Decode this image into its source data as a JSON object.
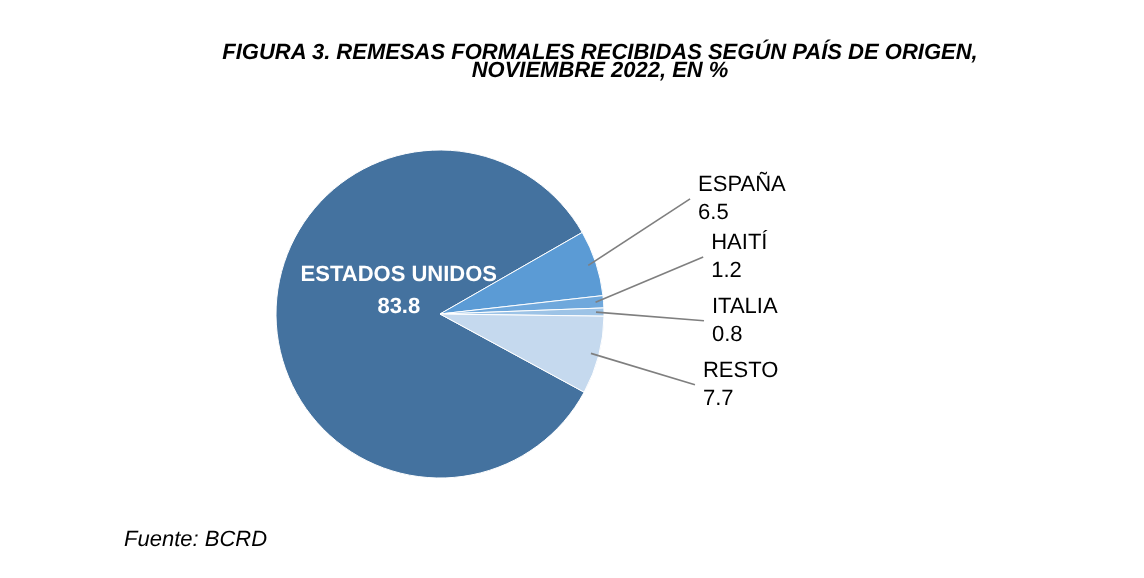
{
  "chart_data": {
    "type": "pie",
    "title": "FIGURA 3. REMESAS FORMALES RECIBIDAS SEGÚN PAÍS DE ORIGEN, NOVIEMBRE 2022, EN %",
    "categories": [
      "ESTADOS UNIDOS",
      "ESPAÑA",
      "HAITÍ",
      "ITALIA",
      "RESTO"
    ],
    "values": [
      83.8,
      6.5,
      1.2,
      0.8,
      7.7
    ],
    "colors": [
      "#44729f",
      "#5b9bd5",
      "#6fa8dc",
      "#9dc3e6",
      "#c5d9ee"
    ],
    "data_labels": true,
    "annotations": [
      "Fuente: BCRD"
    ]
  }
}
